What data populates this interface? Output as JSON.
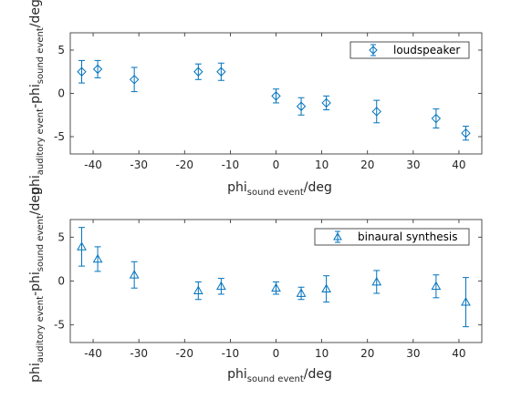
{
  "chart_data": [
    {
      "type": "scatter",
      "x": [
        -42.5,
        -39,
        -31,
        -17,
        -12,
        0,
        5.5,
        11,
        22,
        35,
        41.5
      ],
      "series": [
        {
          "name": "loudspeaker",
          "marker": "diamond",
          "values": [
            2.5,
            2.8,
            1.6,
            2.5,
            2.5,
            -0.3,
            -1.5,
            -1.1,
            -2.1,
            -2.9,
            -4.6
          ],
          "errors": [
            1.3,
            1.0,
            1.4,
            0.9,
            1.0,
            0.8,
            1.0,
            0.8,
            1.3,
            1.1,
            0.8
          ]
        }
      ],
      "xlabel": {
        "main": "phi",
        "sub": "sound event",
        "suffix": "/deg"
      },
      "ylabel": {
        "main": "phi",
        "sub1": "auditory event",
        "mid": "-phi",
        "sub2": "sound event",
        "suffix": "/deg"
      },
      "xlim": [
        -45,
        45
      ],
      "ylim": [
        -7,
        7
      ],
      "xticks": [
        -40,
        -30,
        -20,
        -10,
        0,
        10,
        20,
        30,
        40
      ],
      "yticks": [
        -5,
        0,
        5
      ],
      "grid": false,
      "legend": "top-right",
      "color": "#0072BD"
    },
    {
      "type": "scatter",
      "x": [
        -42.5,
        -39,
        -31,
        -17,
        -12,
        0,
        5.5,
        11,
        22,
        35,
        41.5
      ],
      "series": [
        {
          "name": "binaural synthesis",
          "marker": "triangle",
          "values": [
            3.9,
            2.5,
            0.7,
            -1.1,
            -0.6,
            -0.8,
            -1.4,
            -0.9,
            -0.1,
            -0.6,
            -2.4
          ],
          "errors": [
            2.2,
            1.4,
            1.5,
            1.0,
            0.9,
            0.7,
            0.7,
            1.5,
            1.3,
            1.3,
            2.8
          ]
        }
      ],
      "xlabel": {
        "main": "phi",
        "sub": "sound event",
        "suffix": "/deg"
      },
      "ylabel": {
        "main": "phi",
        "sub1": "auditory event",
        "mid": "-phi",
        "sub2": "sound event",
        "suffix": "/deg"
      },
      "xlim": [
        -45,
        45
      ],
      "ylim": [
        -7,
        7
      ],
      "xticks": [
        -40,
        -30,
        -20,
        -10,
        0,
        10,
        20,
        30,
        40
      ],
      "yticks": [
        -5,
        0,
        5
      ],
      "grid": false,
      "legend": "top-right",
      "color": "#0072BD"
    }
  ]
}
